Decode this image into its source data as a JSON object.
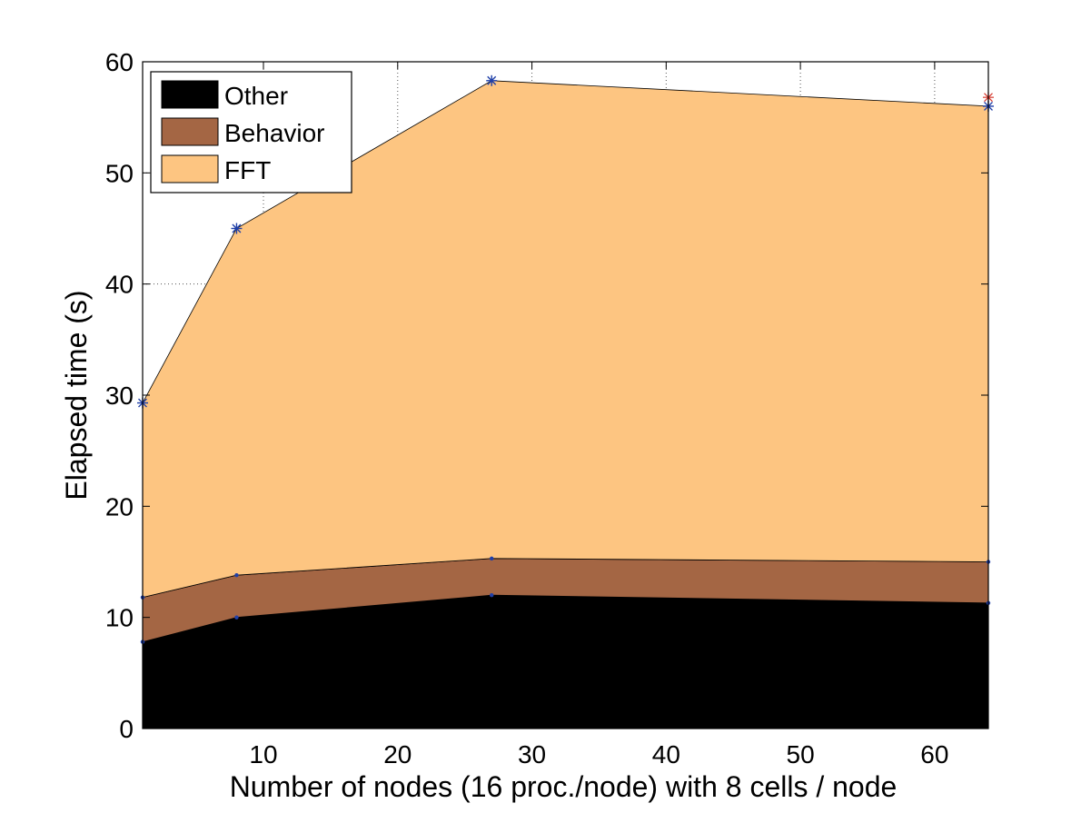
{
  "chart_data": {
    "type": "area",
    "stacked": true,
    "xlabel": "Number of nodes (16 proc./node) with 8 cells / node",
    "ylabel": "Elapsed time (s)",
    "xlim": [
      1,
      64
    ],
    "ylim": [
      0,
      60
    ],
    "x_ticks": [
      10,
      20,
      30,
      40,
      50,
      60
    ],
    "y_ticks": [
      0,
      10,
      20,
      30,
      40,
      50,
      60
    ],
    "grid": true,
    "legend_position": "top-left",
    "x": [
      1,
      8,
      27,
      64
    ],
    "series": [
      {
        "name": "Other",
        "values": [
          7.8,
          10.0,
          12.0,
          11.3
        ],
        "color": "#000000"
      },
      {
        "name": "Behavior",
        "values": [
          4.0,
          3.8,
          3.3,
          3.7
        ],
        "color": "#a46644"
      },
      {
        "name": "FFT",
        "values": [
          17.5,
          31.2,
          43.0,
          41.0
        ],
        "color": "#fdc581"
      }
    ],
    "extra_markers": [
      {
        "x": 64,
        "y": 56.8,
        "color": "#d63a2f"
      }
    ]
  }
}
